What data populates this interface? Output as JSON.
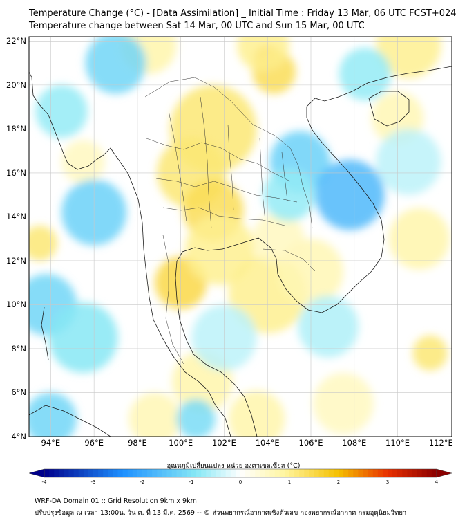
{
  "title": {
    "line1": "Temperature Change (°C) - [Data Assimilation] _ Initial Time : Friday 13 Mar, 06 UTC FCST+024",
    "line2": "Temperature change between Sat 14 Mar, 00 UTC and Sun 15 Mar, 00 UTC"
  },
  "map": {
    "lon_range": [
      93,
      112.5
    ],
    "lat_range": [
      4,
      22.2
    ],
    "lat_ticks": [
      {
        "value": 22,
        "label": "22°N"
      },
      {
        "value": 20,
        "label": "20°N"
      },
      {
        "value": 18,
        "label": "18°N"
      },
      {
        "value": 16,
        "label": "16°N"
      },
      {
        "value": 14,
        "label": "14°N"
      },
      {
        "value": 12,
        "label": "12°N"
      },
      {
        "value": 10,
        "label": "10°N"
      },
      {
        "value": 8,
        "label": "8°N"
      },
      {
        "value": 6,
        "label": "6°N"
      },
      {
        "value": 4,
        "label": "4°N"
      }
    ],
    "lon_ticks": [
      {
        "value": 94,
        "label": "94°E"
      },
      {
        "value": 96,
        "label": "96°E"
      },
      {
        "value": 98,
        "label": "98°E"
      },
      {
        "value": 100,
        "label": "100°E"
      },
      {
        "value": 102,
        "label": "102°E"
      },
      {
        "value": 104,
        "label": "104°E"
      },
      {
        "value": 106,
        "label": "106°E"
      },
      {
        "value": 108,
        "label": "108°E"
      },
      {
        "value": 110,
        "label": "110°E"
      },
      {
        "value": 112,
        "label": "112°E"
      }
    ]
  },
  "colorbar": {
    "title": "อุณหภูมิเปลี่ยนแปลง หน่วย องศาเซลเซียส (°C)",
    "min": -4,
    "max": 4,
    "ticks": [
      {
        "value": -4,
        "label": "-4"
      },
      {
        "value": -3,
        "label": "-3"
      },
      {
        "value": -2,
        "label": "-2"
      },
      {
        "value": -1,
        "label": "-1"
      },
      {
        "value": 0,
        "label": "0"
      },
      {
        "value": 1,
        "label": "1"
      },
      {
        "value": 2,
        "label": "2"
      },
      {
        "value": 3,
        "label": "3"
      },
      {
        "value": 4,
        "label": "4"
      }
    ],
    "colors": {
      "cold_deep": "#00008b",
      "cold": "#1e90ff",
      "cool": "#87e8f5",
      "neutral": "#ffffff",
      "warm_light": "#fff5a0",
      "warm": "#f5c000",
      "hot": "#e83000",
      "hot_deep": "#8b0000"
    }
  },
  "footer": {
    "line1": "WRF-DA Domain 01 :: Grid Resolution 9km x 9km",
    "line2": "ปรับปรุงข้อมูล ณ เวลา 13:00น. วัน ศ. ที่ 13 มี.ค. 2569 -- © ส่วนพยากรณ์อากาศเชิงตัวเลข กองพยากรณ์อากาศ กรมอุตุนิยมวิทยา"
  },
  "field": [
    {
      "lon": 104.0,
      "lat": 21.2,
      "dt": 2.2,
      "r": 0.6
    },
    {
      "lon": 104.3,
      "lat": 20.6,
      "dt": 1.4,
      "r": 1.0
    },
    {
      "lon": 103.8,
      "lat": 21.8,
      "dt": 1.0,
      "r": 1.2
    },
    {
      "lon": 98.5,
      "lat": 21.8,
      "dt": 0.8,
      "r": 1.3
    },
    {
      "lon": 110.5,
      "lat": 21.8,
      "dt": 1.0,
      "r": 1.5
    },
    {
      "lon": 101.5,
      "lat": 18.0,
      "dt": 1.2,
      "r": 2.0
    },
    {
      "lon": 100.5,
      "lat": 16.0,
      "dt": 1.2,
      "r": 1.6
    },
    {
      "lon": 101.5,
      "lat": 14.3,
      "dt": 1.4,
      "r": 1.4
    },
    {
      "lon": 100.0,
      "lat": 11.0,
      "dt": 1.5,
      "r": 1.2
    },
    {
      "lon": 101.8,
      "lat": 12.5,
      "dt": 1.0,
      "r": 1.6
    },
    {
      "lon": 104.0,
      "lat": 10.5,
      "dt": 1.0,
      "r": 1.8
    },
    {
      "lon": 106.0,
      "lat": 11.5,
      "dt": 0.7,
      "r": 1.5
    },
    {
      "lon": 104.5,
      "lat": 13.0,
      "dt": 0.6,
      "r": 1.2
    },
    {
      "lon": 93.5,
      "lat": 12.8,
      "dt": 1.2,
      "r": 0.8
    },
    {
      "lon": 95.5,
      "lat": 16.5,
      "dt": 0.6,
      "r": 1.0
    },
    {
      "lon": 101.0,
      "lat": 6.5,
      "dt": 0.8,
      "r": 1.4
    },
    {
      "lon": 98.8,
      "lat": 4.8,
      "dt": 0.7,
      "r": 1.2
    },
    {
      "lon": 103.5,
      "lat": 4.8,
      "dt": 0.8,
      "r": 1.3
    },
    {
      "lon": 107.5,
      "lat": 5.5,
      "dt": 0.6,
      "r": 1.4
    },
    {
      "lon": 111.5,
      "lat": 7.8,
      "dt": 1.2,
      "r": 0.8
    },
    {
      "lon": 111.0,
      "lat": 13.0,
      "dt": 0.8,
      "r": 1.4
    },
    {
      "lon": 110.0,
      "lat": 18.5,
      "dt": 0.7,
      "r": 1.2
    },
    {
      "lon": 105.5,
      "lat": 16.5,
      "dt": -1.3,
      "r": 1.4
    },
    {
      "lon": 107.8,
      "lat": 15.0,
      "dt": -1.7,
      "r": 1.6
    },
    {
      "lon": 105.0,
      "lat": 15.0,
      "dt": -0.8,
      "r": 1.2
    },
    {
      "lon": 97.0,
      "lat": 21.0,
      "dt": -1.2,
      "r": 1.4
    },
    {
      "lon": 94.5,
      "lat": 18.8,
      "dt": -0.8,
      "r": 1.2
    },
    {
      "lon": 96.0,
      "lat": 14.2,
      "dt": -1.3,
      "r": 1.5
    },
    {
      "lon": 93.8,
      "lat": 10.0,
      "dt": -1.2,
      "r": 1.4
    },
    {
      "lon": 95.5,
      "lat": 8.5,
      "dt": -0.9,
      "r": 1.6
    },
    {
      "lon": 94.0,
      "lat": 4.8,
      "dt": -1.2,
      "r": 1.2
    },
    {
      "lon": 100.7,
      "lat": 4.8,
      "dt": -1.1,
      "r": 0.9
    },
    {
      "lon": 108.5,
      "lat": 20.5,
      "dt": -0.8,
      "r": 1.2
    },
    {
      "lon": 110.5,
      "lat": 16.5,
      "dt": -0.5,
      "r": 1.5
    },
    {
      "lon": 106.8,
      "lat": 9.0,
      "dt": -0.6,
      "r": 1.4
    },
    {
      "lon": 102.0,
      "lat": 8.5,
      "dt": -0.5,
      "r": 1.5
    }
  ]
}
